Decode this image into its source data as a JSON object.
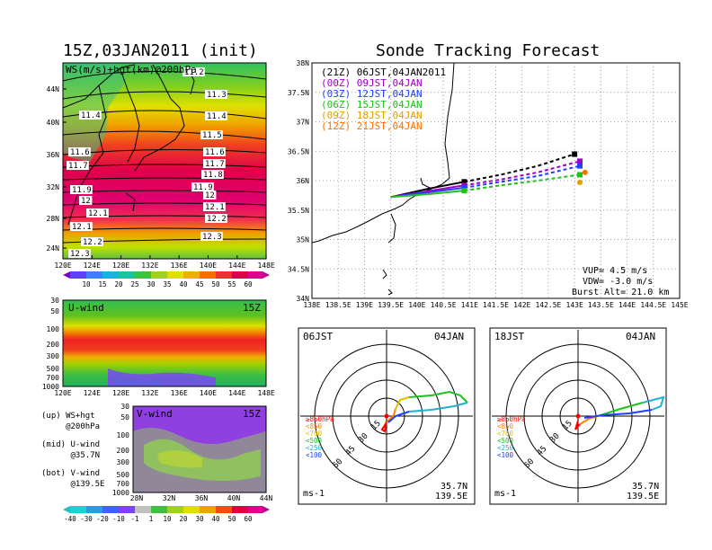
{
  "left": {
    "title": "15Z,03JAN2011 (init)",
    "map": {
      "label": "WS(m/s)+hgt(km)@200hPa",
      "lat_ticks": [
        "44N",
        "40N",
        "36N",
        "32N",
        "28N",
        "24N"
      ],
      "lon_ticks": [
        "120E",
        "124E",
        "128E",
        "132E",
        "136E",
        "140E",
        "144E",
        "148E"
      ],
      "contours": [
        "11.2",
        "11.3",
        "11.4",
        "11.4",
        "11.5",
        "11.6",
        "11.6",
        "11.7",
        "11.7",
        "11.8",
        "11.9",
        "11.9",
        "12",
        "12",
        "12.1",
        "12.1",
        "12.1",
        "12.2",
        "12.2",
        "12.3",
        "12.3"
      ]
    },
    "ws_colorbar": [
      "10",
      "15",
      "20",
      "25",
      "30",
      "35",
      "40",
      "45",
      "50",
      "55",
      "60"
    ],
    "u_wind": {
      "label": "U-wind",
      "time": "15Z",
      "p_ticks": [
        "30",
        "50",
        "100",
        "200",
        "300",
        "500",
        "700",
        "1000"
      ],
      "lon_ticks": [
        "120E",
        "124E",
        "128E",
        "132E",
        "136E",
        "140E",
        "144E",
        "148E"
      ]
    },
    "v_wind": {
      "label": "V-wind",
      "time": "15Z",
      "p_ticks": [
        "30",
        "50",
        "100",
        "200",
        "300",
        "500",
        "700",
        "1000"
      ],
      "lat_ticks": [
        "28N",
        "32N",
        "36N",
        "40N",
        "44N"
      ]
    },
    "notes": {
      "up": "(up) WS+hgt\n     @200hPa",
      "mid": "(mid) U-wind\n      @35.7N",
      "bot": "(bot) V-wind\n      @139.5E"
    },
    "wind_colorbar": [
      "-40",
      "-30",
      "-20",
      "-10",
      "-1",
      "1",
      "10",
      "20",
      "30",
      "40",
      "50",
      "60"
    ]
  },
  "right": {
    "title": "Sonde Tracking Forecast",
    "track": {
      "legend": [
        {
          "label": "(21Z)  06JST,04JAN2011",
          "color": "#000000"
        },
        {
          "label": "(00Z)  09JST,04JAN",
          "color": "#a000c8"
        },
        {
          "label": "(03Z)  12JST,04JAN",
          "color": "#2040ff"
        },
        {
          "label": "(06Z)  15JST,04JAN",
          "color": "#20c020"
        },
        {
          "label": "(09Z)  18JST,04JAN",
          "color": "#e0a000"
        },
        {
          "label": "(12Z)  21JST,04JAN",
          "color": "#ff7000"
        }
      ],
      "lat_ticks": [
        "38N",
        "37.5N",
        "37N",
        "36.5N",
        "36N",
        "35.5N",
        "35N",
        "34.5N",
        "34N"
      ],
      "lon_ticks": [
        "138E",
        "138.5E",
        "139E",
        "139.5E",
        "140E",
        "140.5E",
        "141E",
        "141.5E",
        "142E",
        "142.5E",
        "143E",
        "143.5E",
        "144E",
        "144.5E",
        "145E"
      ],
      "vup": "VUP=  4.5 m/s",
      "vdw": "VDW= -3.0 m/s",
      "burst": "Burst Alt= 21.0 km"
    },
    "polar_left": {
      "time": "06JST",
      "date": "04JAN",
      "unit": "ms-1",
      "loc_lat": "35.7N",
      "loc_lon": "139.5E",
      "rings": [
        "15",
        "30",
        "45",
        "60"
      ],
      "legend": [
        "≥850hPa",
        "<850",
        "<700",
        "<500",
        "<250",
        "<100"
      ]
    },
    "polar_right": {
      "time": "18JST",
      "date": "04JAN",
      "unit": "ms-1",
      "loc_lat": "35.7N",
      "loc_lon": "139.5E",
      "rings": [
        "15",
        "30",
        "45",
        "60"
      ],
      "legend": [
        "≥850hPa",
        "<850",
        "<700",
        "<500",
        "<250",
        "<100"
      ]
    },
    "legend_colors": [
      "#ff0000",
      "#ff8000",
      "#e0c000",
      "#20c020",
      "#20b0d0",
      "#2040ff"
    ]
  },
  "chart_data": [
    {
      "type": "line",
      "title": "Sonde Tracking Forecast",
      "xlim": [
        138,
        145
      ],
      "ylim": [
        34,
        38
      ],
      "series": [
        {
          "name": "(21Z) 06JST,04JAN2011",
          "x": [
            139.5,
            140.2,
            140.9,
            141.6,
            142.3,
            143.0
          ],
          "y": [
            35.72,
            35.86,
            35.98,
            36.1,
            36.25,
            36.45
          ]
        },
        {
          "name": "(00Z) 09JST,04JAN",
          "x": [
            139.5,
            140.2,
            140.9,
            141.6,
            142.3,
            143.1
          ],
          "y": [
            35.72,
            35.82,
            35.92,
            36.02,
            36.14,
            36.33
          ]
        },
        {
          "name": "(03Z) 12JST,04JAN",
          "x": [
            139.5,
            140.2,
            140.9,
            141.6,
            142.3,
            143.1
          ],
          "y": [
            35.72,
            35.8,
            35.88,
            35.98,
            36.08,
            36.25
          ]
        },
        {
          "name": "(06Z) 15JST,04JAN",
          "x": [
            139.5,
            140.2,
            140.9,
            141.6,
            142.3,
            143.1
          ],
          "y": [
            35.72,
            35.77,
            35.83,
            35.92,
            36.0,
            36.1
          ]
        },
        {
          "name": "(09Z) 18JST,04JAN",
          "x": [
            143.1
          ],
          "y": [
            35.97
          ]
        },
        {
          "name": "(12Z) 21JST,04JAN",
          "x": [
            143.2
          ],
          "y": [
            36.14
          ]
        }
      ]
    }
  ]
}
